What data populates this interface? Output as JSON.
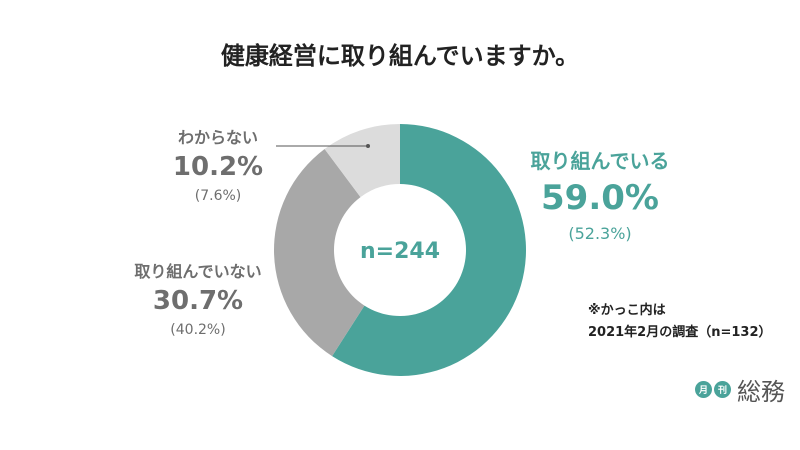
{
  "title": "健康経営に取り組んでいますか。",
  "chart_data": {
    "type": "pie",
    "donut": true,
    "center_label": "n=244",
    "slices": [
      {
        "label": "取り組んでいる",
        "value": 59.0,
        "value_text": "59.0%",
        "previous_text": "(52.3%)",
        "color": "#4aa39a"
      },
      {
        "label": "取り組んでいない",
        "value": 30.7,
        "value_text": "30.7%",
        "previous_text": "(40.2%)",
        "color": "#a8a8a8"
      },
      {
        "label": "わからない",
        "value": 10.2,
        "value_text": "10.2%",
        "previous_text": "(7.6%)",
        "color": "#dcdcdc"
      }
    ]
  },
  "note": {
    "line1": "※かっこ内は",
    "line2": "2021年2月の調査（n=132）"
  },
  "logo": {
    "badge1": "月",
    "badge2": "刊",
    "word": "総務",
    "color": "#4aa39a"
  }
}
